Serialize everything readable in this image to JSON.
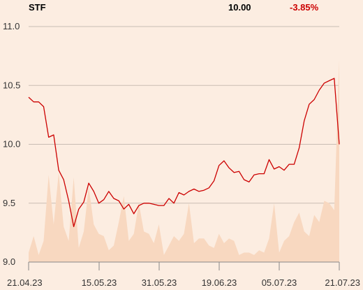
{
  "header": {
    "ticker": "STF",
    "price": "10.00",
    "change": "-3.85%"
  },
  "colors": {
    "background": "#fcede1",
    "line": "#cc0000",
    "volume": "#f8d8c0",
    "change_negative": "#cc0000",
    "grid": "#c9bdb3"
  },
  "chart_data": {
    "type": "line",
    "title": "",
    "xlabel": "",
    "ylabel": "",
    "ylim": [
      9.0,
      11.0
    ],
    "grid": true,
    "y_ticks": [
      "11.0",
      "10.5",
      "10.0",
      "9.5",
      "9.0"
    ],
    "x_ticks": [
      "21.04.23",
      "15.05.23",
      "31.05.23",
      "19.06.23",
      "05.07.23",
      "21.07.23"
    ],
    "series": [
      {
        "kind": "price",
        "values": [
          10.4,
          10.36,
          10.36,
          10.32,
          10.06,
          10.08,
          9.78,
          9.7,
          9.52,
          9.3,
          9.45,
          9.51,
          9.67,
          9.6,
          9.5,
          9.53,
          9.6,
          9.54,
          9.52,
          9.45,
          9.49,
          9.41,
          9.48,
          9.5,
          9.5,
          9.49,
          9.48,
          9.48,
          9.54,
          9.5,
          9.59,
          9.57,
          9.6,
          9.62,
          9.6,
          9.61,
          9.63,
          9.69,
          9.82,
          9.86,
          9.8,
          9.76,
          9.77,
          9.7,
          9.68,
          9.74,
          9.75,
          9.75,
          9.87,
          9.79,
          9.81,
          9.78,
          9.83,
          9.83,
          9.97,
          10.2,
          10.34,
          10.38,
          10.46,
          10.52,
          10.54,
          10.56,
          10.0
        ]
      },
      {
        "kind": "volume",
        "values": [
          0.04,
          0.11,
          0.03,
          0.09,
          0.37,
          0.16,
          0.38,
          0.15,
          0.09,
          0.36,
          0.06,
          0.13,
          0.32,
          0.16,
          0.12,
          0.11,
          0.05,
          0.07,
          0.17,
          0.28,
          0.09,
          0.12,
          0.25,
          0.13,
          0.12,
          0.08,
          0.16,
          0.03,
          0.07,
          0.11,
          0.09,
          0.12,
          0.25,
          0.08,
          0.1,
          0.1,
          0.07,
          0.06,
          0.12,
          0.08,
          0.1,
          0.09,
          0.03,
          0.04,
          0.04,
          0.03,
          0.05,
          0.04,
          0.1,
          0.25,
          0.04,
          0.09,
          0.11,
          0.17,
          0.21,
          0.13,
          0.11,
          0.2,
          0.17,
          0.26,
          0.25,
          0.22,
          0.86
        ]
      }
    ]
  }
}
